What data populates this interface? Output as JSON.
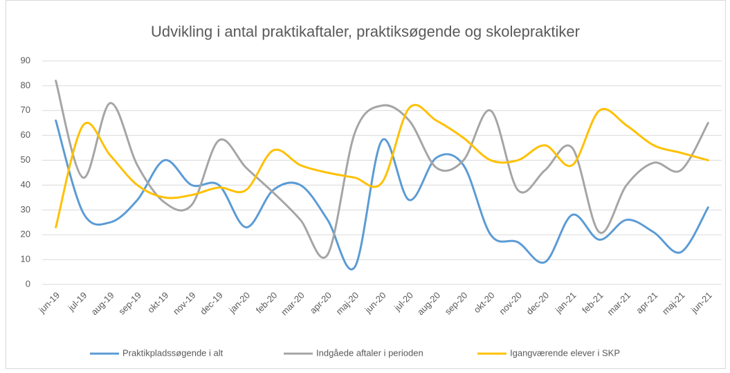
{
  "chart_data": {
    "type": "line",
    "title": "Udvikling i antal praktikaftaler, praktiksøgende og skolepraktiker",
    "categories": [
      "jun-19",
      "jul-19",
      "aug-19",
      "sep-19",
      "okt-19",
      "nov-19",
      "dec-19",
      "jan-20",
      "feb-20",
      "mar-20",
      "apr-20",
      "maj-20",
      "jun-20",
      "jul-20",
      "aug-20",
      "sep-20",
      "okt-20",
      "nov-20",
      "dec-20",
      "jan-21",
      "feb-21",
      "mar-21",
      "apr-21",
      "maj-21",
      "jun-21"
    ],
    "series": [
      {
        "name": "Praktikpladssøgende i alt",
        "color": "#5b9bd5",
        "values": [
          66,
          29,
          25,
          34,
          50,
          40,
          40,
          23,
          38,
          40,
          26,
          7,
          58,
          34,
          51,
          48,
          20,
          17,
          9,
          28,
          18,
          26,
          21,
          13,
          31
        ]
      },
      {
        "name": "Indgåede aftaler i perioden",
        "color": "#a5a5a5",
        "values": [
          82,
          43,
          73,
          48,
          33,
          32,
          58,
          47,
          37,
          26,
          12,
          61,
          72,
          66,
          47,
          50,
          70,
          38,
          46,
          55,
          21,
          40,
          49,
          46,
          65
        ]
      },
      {
        "name": "Igangværende elever i SKP",
        "color": "#ffc000",
        "values": [
          23,
          64,
          52,
          40,
          35,
          36,
          39,
          38,
          54,
          48,
          45,
          43,
          41,
          71,
          66,
          59,
          50,
          50,
          56,
          48,
          70,
          64,
          56,
          53,
          50
        ]
      }
    ],
    "ylim": [
      0,
      90
    ],
    "yticks": [
      0,
      10,
      20,
      30,
      40,
      50,
      60,
      70,
      80,
      90
    ],
    "grid": true,
    "smooth": true,
    "legend": "bottom"
  }
}
